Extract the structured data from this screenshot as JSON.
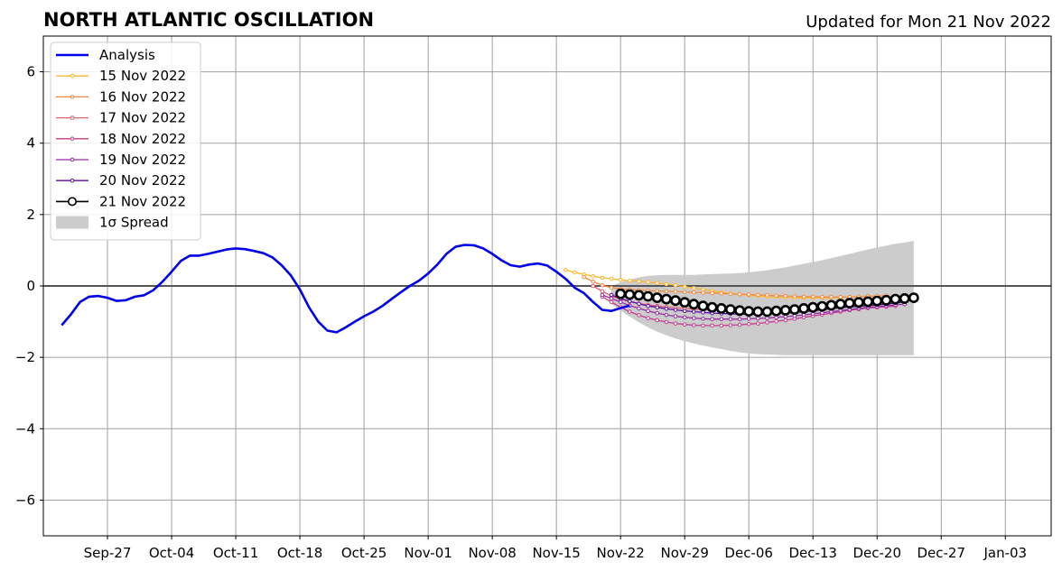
{
  "chart_data": {
    "type": "line",
    "title": "NORTH ATLANTIC OSCILLATION",
    "subtitle": "Updated for Mon 21 Nov 2022",
    "xlabel": "",
    "ylabel": "",
    "xlim": [
      "2022-09-20",
      "2023-01-08"
    ],
    "ylim": [
      -7,
      7
    ],
    "grid": true,
    "legend_position": "top-left",
    "x_ticks": [
      "Sep-27",
      "Oct-04",
      "Oct-11",
      "Oct-18",
      "Oct-25",
      "Nov-01",
      "Nov-08",
      "Nov-15",
      "Nov-22",
      "Nov-29",
      "Dec-06",
      "Dec-13",
      "Dec-20",
      "Dec-27",
      "Jan-03"
    ],
    "y_ticks": [
      "6",
      "4",
      "2",
      "0",
      "−2",
      "−4",
      "−6"
    ],
    "y_tick_values": [
      6,
      4,
      2,
      0,
      -2,
      -4,
      -6
    ],
    "analysis": {
      "name": "Analysis",
      "color": "#0000ee",
      "start_date": "2022-09-22",
      "values": [
        -1.1,
        -0.8,
        -0.45,
        -0.3,
        -0.28,
        -0.33,
        -0.42,
        -0.4,
        -0.3,
        -0.26,
        -0.12,
        0.12,
        0.4,
        0.7,
        0.85,
        0.85,
        0.9,
        0.96,
        1.02,
        1.05,
        1.03,
        0.98,
        0.92,
        0.8,
        0.58,
        0.3,
        -0.1,
        -0.6,
        -1.0,
        -1.25,
        -1.3,
        -1.16,
        -1.0,
        -0.85,
        -0.72,
        -0.56,
        -0.37,
        -0.18,
        0.0,
        0.15,
        0.35,
        0.6,
        0.9,
        1.1,
        1.15,
        1.14,
        1.05,
        0.9,
        0.72,
        0.58,
        0.54,
        0.6,
        0.63,
        0.57,
        0.4,
        0.2,
        -0.05,
        -0.2,
        -0.45,
        -0.67,
        -0.7,
        -0.62,
        -0.55
      ]
    },
    "spread": {
      "name": "1σ Spread",
      "color": "#cccccc",
      "start_date": "2022-11-21",
      "upper": [
        0.0,
        0.1,
        0.18,
        0.24,
        0.28,
        0.3,
        0.31,
        0.31,
        0.31,
        0.31,
        0.32,
        0.33,
        0.34,
        0.35,
        0.36,
        0.38,
        0.41,
        0.44,
        0.48,
        0.52,
        0.57,
        0.62,
        0.67,
        0.72,
        0.78,
        0.84,
        0.9,
        0.96,
        1.02,
        1.08,
        1.13,
        1.18,
        1.22,
        1.26
      ],
      "lower": [
        -0.5,
        -0.7,
        -0.86,
        -1.02,
        -1.16,
        -1.28,
        -1.38,
        -1.47,
        -1.55,
        -1.61,
        -1.67,
        -1.72,
        -1.77,
        -1.82,
        -1.86,
        -1.89,
        -1.91,
        -1.92,
        -1.93,
        -1.94,
        -1.94,
        -1.94,
        -1.94,
        -1.94,
        -1.94,
        -1.94,
        -1.94,
        -1.94,
        -1.94,
        -1.94,
        -1.94,
        -1.94,
        -1.94,
        -1.94
      ]
    },
    "series": [
      {
        "name": "15 Nov 2022",
        "color": "#ffb52e",
        "start_date": "2022-11-16",
        "values": [
          0.45,
          0.38,
          0.32,
          0.27,
          0.23,
          0.2,
          0.17,
          0.15,
          0.13,
          0.11,
          0.08,
          0.05,
          0.02,
          -0.02,
          -0.06,
          -0.1,
          -0.14,
          -0.18,
          -0.21,
          -0.24,
          -0.26,
          -0.28,
          -0.3,
          -0.31,
          -0.32,
          -0.33,
          -0.33,
          -0.33,
          -0.33,
          -0.33,
          -0.32,
          -0.31,
          -0.3,
          -0.28
        ]
      },
      {
        "name": "16 Nov 2022",
        "color": "#f28a44",
        "start_date": "2022-11-18",
        "values": [
          0.25,
          0.12,
          0.02,
          -0.05,
          -0.08,
          -0.1,
          -0.12,
          -0.13,
          -0.14,
          -0.15,
          -0.16,
          -0.17,
          -0.18,
          -0.19,
          -0.2,
          -0.21,
          -0.22,
          -0.23,
          -0.24,
          -0.25,
          -0.26,
          -0.27,
          -0.28,
          -0.29,
          -0.3,
          -0.3,
          -0.31,
          -0.31,
          -0.31,
          -0.31,
          -0.3,
          -0.29,
          -0.28,
          -0.27
        ]
      },
      {
        "name": "17 Nov 2022",
        "color": "#e0606d",
        "start_date": "2022-11-19",
        "values": [
          0.0,
          -0.15,
          -0.28,
          -0.37,
          -0.44,
          -0.49,
          -0.53,
          -0.56,
          -0.59,
          -0.61,
          -0.63,
          -0.65,
          -0.66,
          -0.67,
          -0.68,
          -0.68,
          -0.68,
          -0.68,
          -0.68,
          -0.67,
          -0.66,
          -0.65,
          -0.64,
          -0.63,
          -0.61,
          -0.6,
          -0.58,
          -0.57,
          -0.55,
          -0.54,
          -0.53,
          -0.52,
          -0.51
        ]
      },
      {
        "name": "18 Nov 2022",
        "color": "#c33c8e",
        "start_date": "2022-11-20",
        "values": [
          -0.3,
          -0.45,
          -0.6,
          -0.72,
          -0.82,
          -0.9,
          -0.96,
          -1.01,
          -1.05,
          -1.08,
          -1.1,
          -1.11,
          -1.11,
          -1.11,
          -1.1,
          -1.09,
          -1.07,
          -1.05,
          -1.02,
          -0.99,
          -0.96,
          -0.92,
          -0.88,
          -0.84,
          -0.8,
          -0.76,
          -0.72,
          -0.68,
          -0.65,
          -0.62,
          -0.6,
          -0.58,
          -0.56
        ]
      },
      {
        "name": "19 Nov 2022",
        "color": "#962aa3",
        "start_date": "2022-11-20",
        "values": [
          -0.25,
          -0.35,
          -0.45,
          -0.55,
          -0.63,
          -0.7,
          -0.76,
          -0.81,
          -0.85,
          -0.88,
          -0.9,
          -0.92,
          -0.93,
          -0.93,
          -0.93,
          -0.93,
          -0.92,
          -0.91,
          -0.9,
          -0.88,
          -0.86,
          -0.84,
          -0.81,
          -0.78,
          -0.75,
          -0.72,
          -0.69,
          -0.66,
          -0.63,
          -0.6,
          -0.58,
          -0.56,
          -0.53,
          -0.51
        ]
      },
      {
        "name": "20 Nov 2022",
        "color": "#5c0da0",
        "start_date": "2022-11-21",
        "values": [
          -0.25,
          -0.35,
          -0.43,
          -0.5,
          -0.56,
          -0.6,
          -0.64,
          -0.67,
          -0.7,
          -0.72,
          -0.74,
          -0.76,
          -0.77,
          -0.78,
          -0.79,
          -0.79,
          -0.79,
          -0.78,
          -0.77,
          -0.76,
          -0.74,
          -0.72,
          -0.7,
          -0.67,
          -0.64,
          -0.61,
          -0.59,
          -0.57,
          -0.55,
          -0.53,
          -0.51,
          -0.48,
          -0.45
        ]
      },
      {
        "name": "21 Nov 2022",
        "color": "#000000",
        "start_date": "2022-11-22",
        "values": [
          -0.22,
          -0.24,
          -0.26,
          -0.29,
          -0.33,
          -0.37,
          -0.41,
          -0.46,
          -0.51,
          -0.56,
          -0.6,
          -0.63,
          -0.66,
          -0.69,
          -0.71,
          -0.72,
          -0.72,
          -0.7,
          -0.68,
          -0.66,
          -0.63,
          -0.6,
          -0.57,
          -0.54,
          -0.51,
          -0.48,
          -0.46,
          -0.44,
          -0.42,
          -0.4,
          -0.37,
          -0.35,
          -0.33
        ]
      }
    ]
  }
}
